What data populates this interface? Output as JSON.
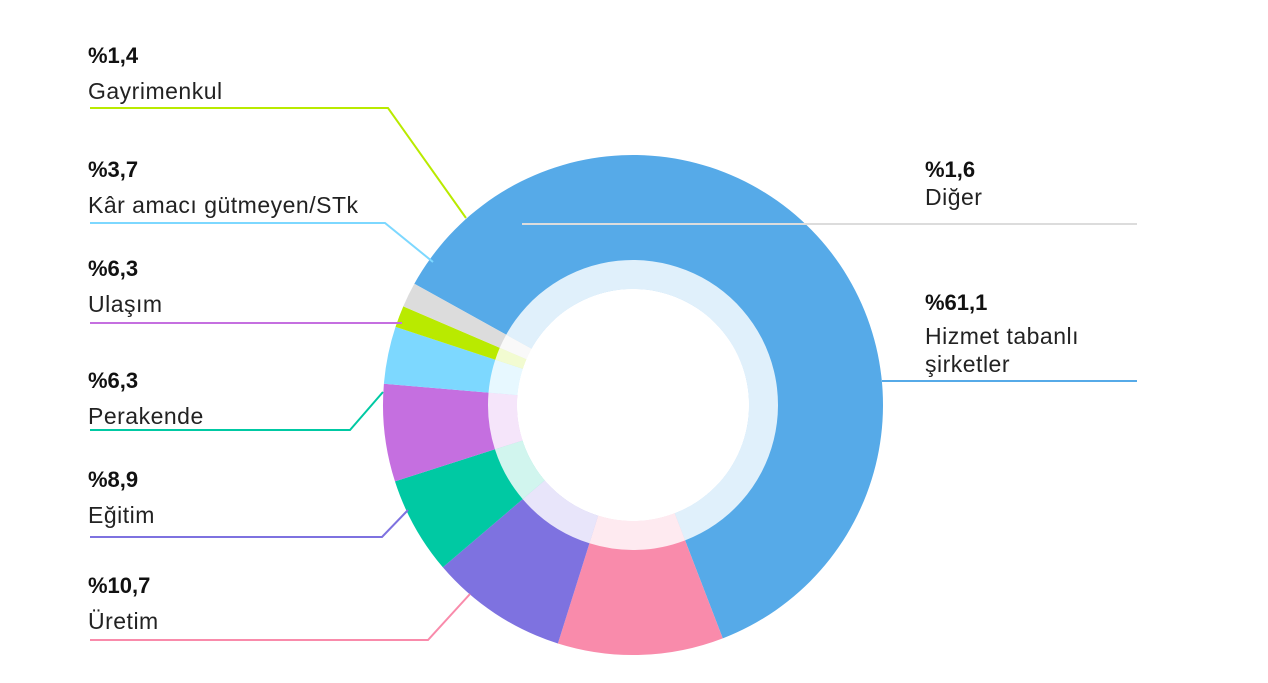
{
  "chart_data": {
    "type": "pie",
    "style": "donut",
    "slices": [
      {
        "label": "Hizmet tabanlı şirketler",
        "value": 61.1,
        "display": "%61,1",
        "color": "#56AAE8"
      },
      {
        "label": "Üretim",
        "value": 10.7,
        "display": "%10,7",
        "color": "#F98BAB"
      },
      {
        "label": "Eğitim",
        "value": 8.9,
        "display": "%8,9",
        "color": "#7E72E0"
      },
      {
        "label": "Perakende",
        "value": 6.3,
        "display": "%6,3",
        "color": "#00C9A3"
      },
      {
        "label": "Ulaşım",
        "value": 6.3,
        "display": "%6,3",
        "color": "#C56FE0"
      },
      {
        "label": "Kâr amacı gütmeyen/STk",
        "value": 3.7,
        "display": "%3,7",
        "color": "#7DD8FF"
      },
      {
        "label": "Gayrimenkul",
        "value": 1.4,
        "display": "%1,4",
        "color": "#B9EA00"
      },
      {
        "label": "Diğer",
        "value": 1.6,
        "display": "%1,6",
        "color": "#DCDCDC"
      }
    ]
  }
}
